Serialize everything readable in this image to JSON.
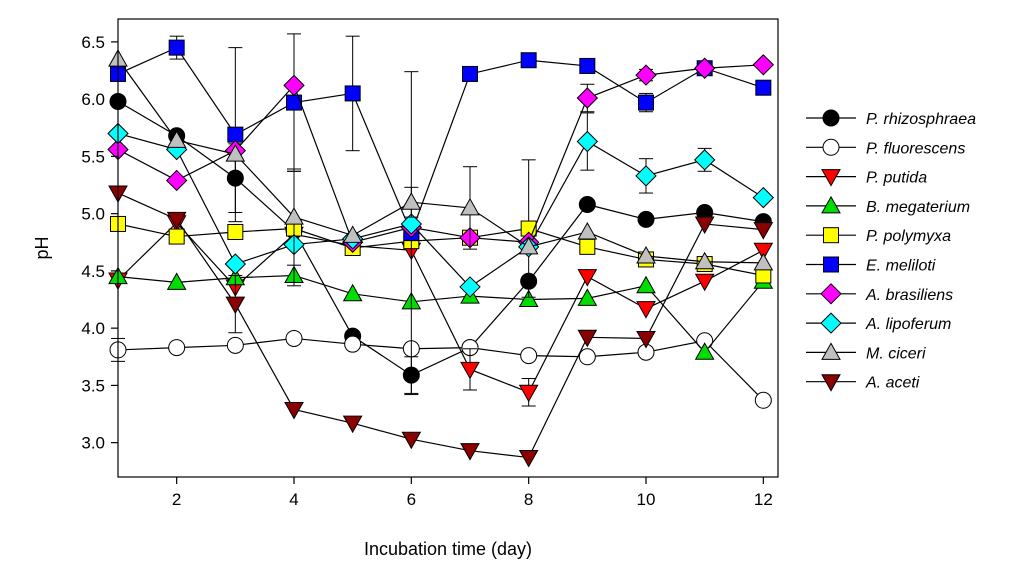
{
  "chart_data": {
    "type": "line",
    "title": "",
    "xlabel": "Incubation time (day)",
    "ylabel": "pH",
    "xlim": [
      1,
      12.25
    ],
    "ylim": [
      2.7,
      6.7
    ],
    "xticks": [
      2,
      4,
      6,
      8,
      10,
      12
    ],
    "yticks": [
      3.0,
      3.5,
      4.0,
      4.5,
      5.0,
      5.5,
      6.0,
      6.5
    ],
    "legend_position": "right",
    "grid": false,
    "x": [
      1,
      2,
      3,
      4,
      5,
      6,
      7,
      8,
      9,
      10,
      11,
      12
    ],
    "series": [
      {
        "name": "P. rhizosphraea",
        "marker": "circle",
        "fill": "#000000",
        "values": [
          5.98,
          5.68,
          5.31,
          4.85,
          3.93,
          3.59,
          3.83,
          4.41,
          5.08,
          4.95,
          5.01,
          4.93
        ],
        "errors": [
          0.04,
          0,
          0.3,
          0,
          0,
          0.16,
          0,
          0,
          0,
          0,
          0,
          0
        ]
      },
      {
        "name": "P. fluorescens",
        "marker": "circle",
        "fill": "#ffffff",
        "values": [
          3.81,
          3.83,
          3.85,
          3.91,
          3.86,
          3.82,
          3.83,
          3.76,
          3.75,
          3.79,
          3.89,
          3.37
        ],
        "errors": [
          0.1,
          0,
          0,
          0,
          0,
          0,
          0,
          0,
          0,
          0,
          0,
          0
        ]
      },
      {
        "name": "P. putida",
        "marker": "triangle-down",
        "fill": "#ff0000",
        "values": [
          4.42,
          4.92,
          4.36,
          4.82,
          4.72,
          4.68,
          3.64,
          3.44,
          4.45,
          4.17,
          4.41,
          4.68
        ],
        "errors": [
          0,
          0,
          0,
          0,
          0,
          0,
          0.18,
          0.12,
          0,
          0,
          0,
          0
        ]
      },
      {
        "name": "B. megaterium",
        "marker": "triangle-up",
        "fill": "#00dd00",
        "values": [
          4.45,
          4.4,
          4.44,
          4.46,
          4.3,
          4.23,
          4.28,
          4.25,
          4.26,
          4.37,
          3.79,
          4.41
        ],
        "errors": [
          0,
          0,
          0,
          0,
          0,
          0,
          0,
          0,
          0,
          0,
          0,
          0
        ]
      },
      {
        "name": "P. polymyxa",
        "marker": "square",
        "fill": "#ffff00",
        "values": [
          4.91,
          4.8,
          4.84,
          4.87,
          4.7,
          4.76,
          4.79,
          4.87,
          4.71,
          4.6,
          4.56,
          4.46
        ],
        "errors": [
          0,
          0,
          0,
          0.5,
          0,
          0,
          0,
          0.6,
          0,
          0,
          0,
          0
        ]
      },
      {
        "name": "E. meliloti",
        "marker": "square",
        "fill": "#0000ff",
        "values": [
          6.22,
          6.45,
          5.69,
          5.97,
          6.05,
          4.83,
          6.22,
          6.34,
          6.29,
          5.97,
          6.27,
          6.1
        ],
        "errors": [
          0,
          0.1,
          0.76,
          0.6,
          0.5,
          1.41,
          0,
          0,
          0,
          0.08,
          0,
          0
        ]
      },
      {
        "name": "A. brasiliens",
        "marker": "diamond",
        "fill": "#ff00ff",
        "values": [
          5.56,
          5.29,
          5.55,
          6.12,
          4.75,
          4.88,
          4.79,
          4.75,
          6.01,
          6.21,
          6.27,
          6.3
        ],
        "errors": [
          0,
          0,
          0,
          0,
          0,
          0,
          0,
          0,
          0.12,
          0.05,
          0,
          0
        ]
      },
      {
        "name": "A. lipoferum",
        "marker": "diamond",
        "fill": "#00ffff",
        "values": [
          5.7,
          5.56,
          4.56,
          4.73,
          4.78,
          4.91,
          4.36,
          4.71,
          5.63,
          5.33,
          5.47,
          5.14
        ],
        "errors": [
          0,
          0,
          0,
          0,
          0,
          0,
          0,
          0,
          0.25,
          0.15,
          0.1,
          0
        ]
      },
      {
        "name": "M. ciceri",
        "marker": "triangle-up",
        "fill": "#c0c0c0",
        "values": [
          6.35,
          5.64,
          5.52,
          4.97,
          4.81,
          5.1,
          5.05,
          4.71,
          4.84,
          4.63,
          4.58,
          4.57
        ],
        "errors": [
          0,
          0,
          0,
          0.42,
          0,
          0.13,
          0.36,
          0,
          0,
          0,
          0,
          0
        ]
      },
      {
        "name": "A. aceti",
        "marker": "triangle-down",
        "fill": "#8b0000",
        "values": [
          5.18,
          4.95,
          4.21,
          3.29,
          3.17,
          3.03,
          2.93,
          2.87,
          3.92,
          3.91,
          4.91,
          4.86
        ],
        "errors": [
          0,
          0,
          0.25,
          0,
          0,
          0,
          0,
          0,
          0,
          0,
          0,
          0
        ]
      }
    ]
  }
}
